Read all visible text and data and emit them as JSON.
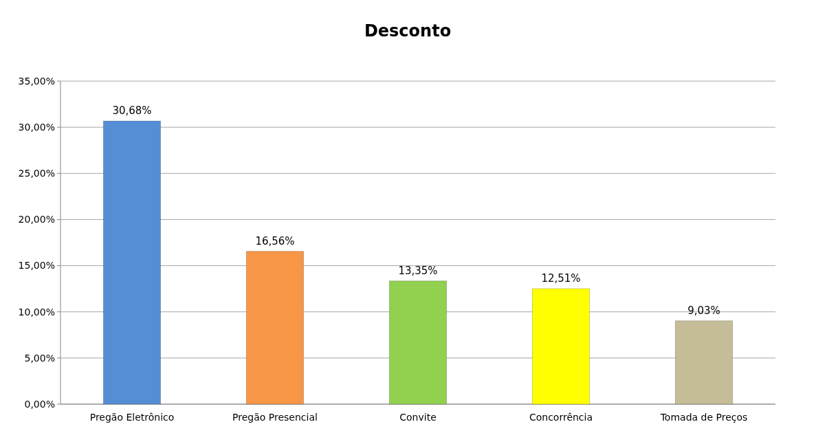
{
  "chart_data": {
    "type": "bar",
    "title": "Desconto",
    "categories": [
      "Pregão Eletrônico",
      "Pregão Presencial",
      "Convite",
      "Concorrência",
      "Tomada de Preços"
    ],
    "values": [
      30.68,
      16.56,
      13.35,
      12.51,
      9.03
    ],
    "colors": [
      "#558ed5",
      "#f79646",
      "#92d050",
      "#ffff00",
      "#c4bd97"
    ],
    "value_labels": [
      "30,68%",
      "16,56%",
      "13,35%",
      "12,51%",
      "9,03%"
    ],
    "ylim": [
      0,
      35
    ],
    "yticks": [
      {
        "value": 0,
        "label": "0,00%"
      },
      {
        "value": 5,
        "label": "5,00%"
      },
      {
        "value": 10,
        "label": "10,00%"
      },
      {
        "value": 15,
        "label": "15,00%"
      },
      {
        "value": 20,
        "label": "20,00%"
      },
      {
        "value": 25,
        "label": "25,00%"
      },
      {
        "value": 30,
        "label": "30,00%"
      },
      {
        "value": 35,
        "label": "35,00%"
      }
    ],
    "grid": "y"
  }
}
